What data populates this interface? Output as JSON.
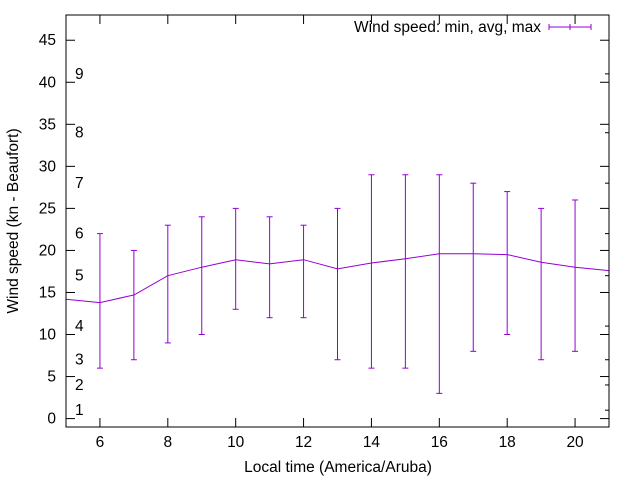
{
  "chart_data": {
    "type": "line",
    "subtype": "errorbar",
    "title": "",
    "xlabel": "Local time (America/Aruba)",
    "ylabel": "Wind speed (kn - Beaufort)",
    "xlim": [
      5,
      21
    ],
    "ylim": [
      -1,
      48
    ],
    "x_ticks": [
      6,
      8,
      10,
      12,
      14,
      16,
      18,
      20
    ],
    "y_ticks": [
      0,
      5,
      10,
      15,
      20,
      25,
      30,
      35,
      40,
      45
    ],
    "beaufort_ticks": [
      {
        "label": "1",
        "value": 1
      },
      {
        "label": "2",
        "value": 4
      },
      {
        "label": "3",
        "value": 7
      },
      {
        "label": "4",
        "value": 11
      },
      {
        "label": "5",
        "value": 17
      },
      {
        "label": "6",
        "value": 22
      },
      {
        "label": "7",
        "value": 28
      },
      {
        "label": "8",
        "value": 34
      },
      {
        "label": "9",
        "value": 41
      }
    ],
    "legend": {
      "label": "Wind speed: min, avg, max",
      "position": "top-right"
    },
    "color": "#9400d3",
    "series": [
      {
        "name": "Wind speed: min, avg, max",
        "x": [
          5,
          6,
          7,
          8,
          9,
          10,
          11,
          12,
          13,
          14,
          15,
          16,
          17,
          18,
          19,
          20,
          21
        ],
        "avg": [
          14.2,
          13.8,
          14.7,
          17.0,
          18.0,
          18.9,
          18.4,
          18.9,
          17.8,
          18.5,
          19.0,
          19.6,
          19.6,
          19.5,
          18.6,
          18.0,
          17.6
        ],
        "min": [
          null,
          6,
          7,
          9,
          10,
          13,
          12,
          12,
          7,
          6,
          6,
          3,
          8,
          10,
          7,
          8,
          null
        ],
        "max": [
          null,
          22,
          20,
          23,
          24,
          25,
          24,
          23,
          25,
          29,
          29,
          29,
          28,
          27,
          25,
          26,
          null
        ]
      }
    ]
  }
}
